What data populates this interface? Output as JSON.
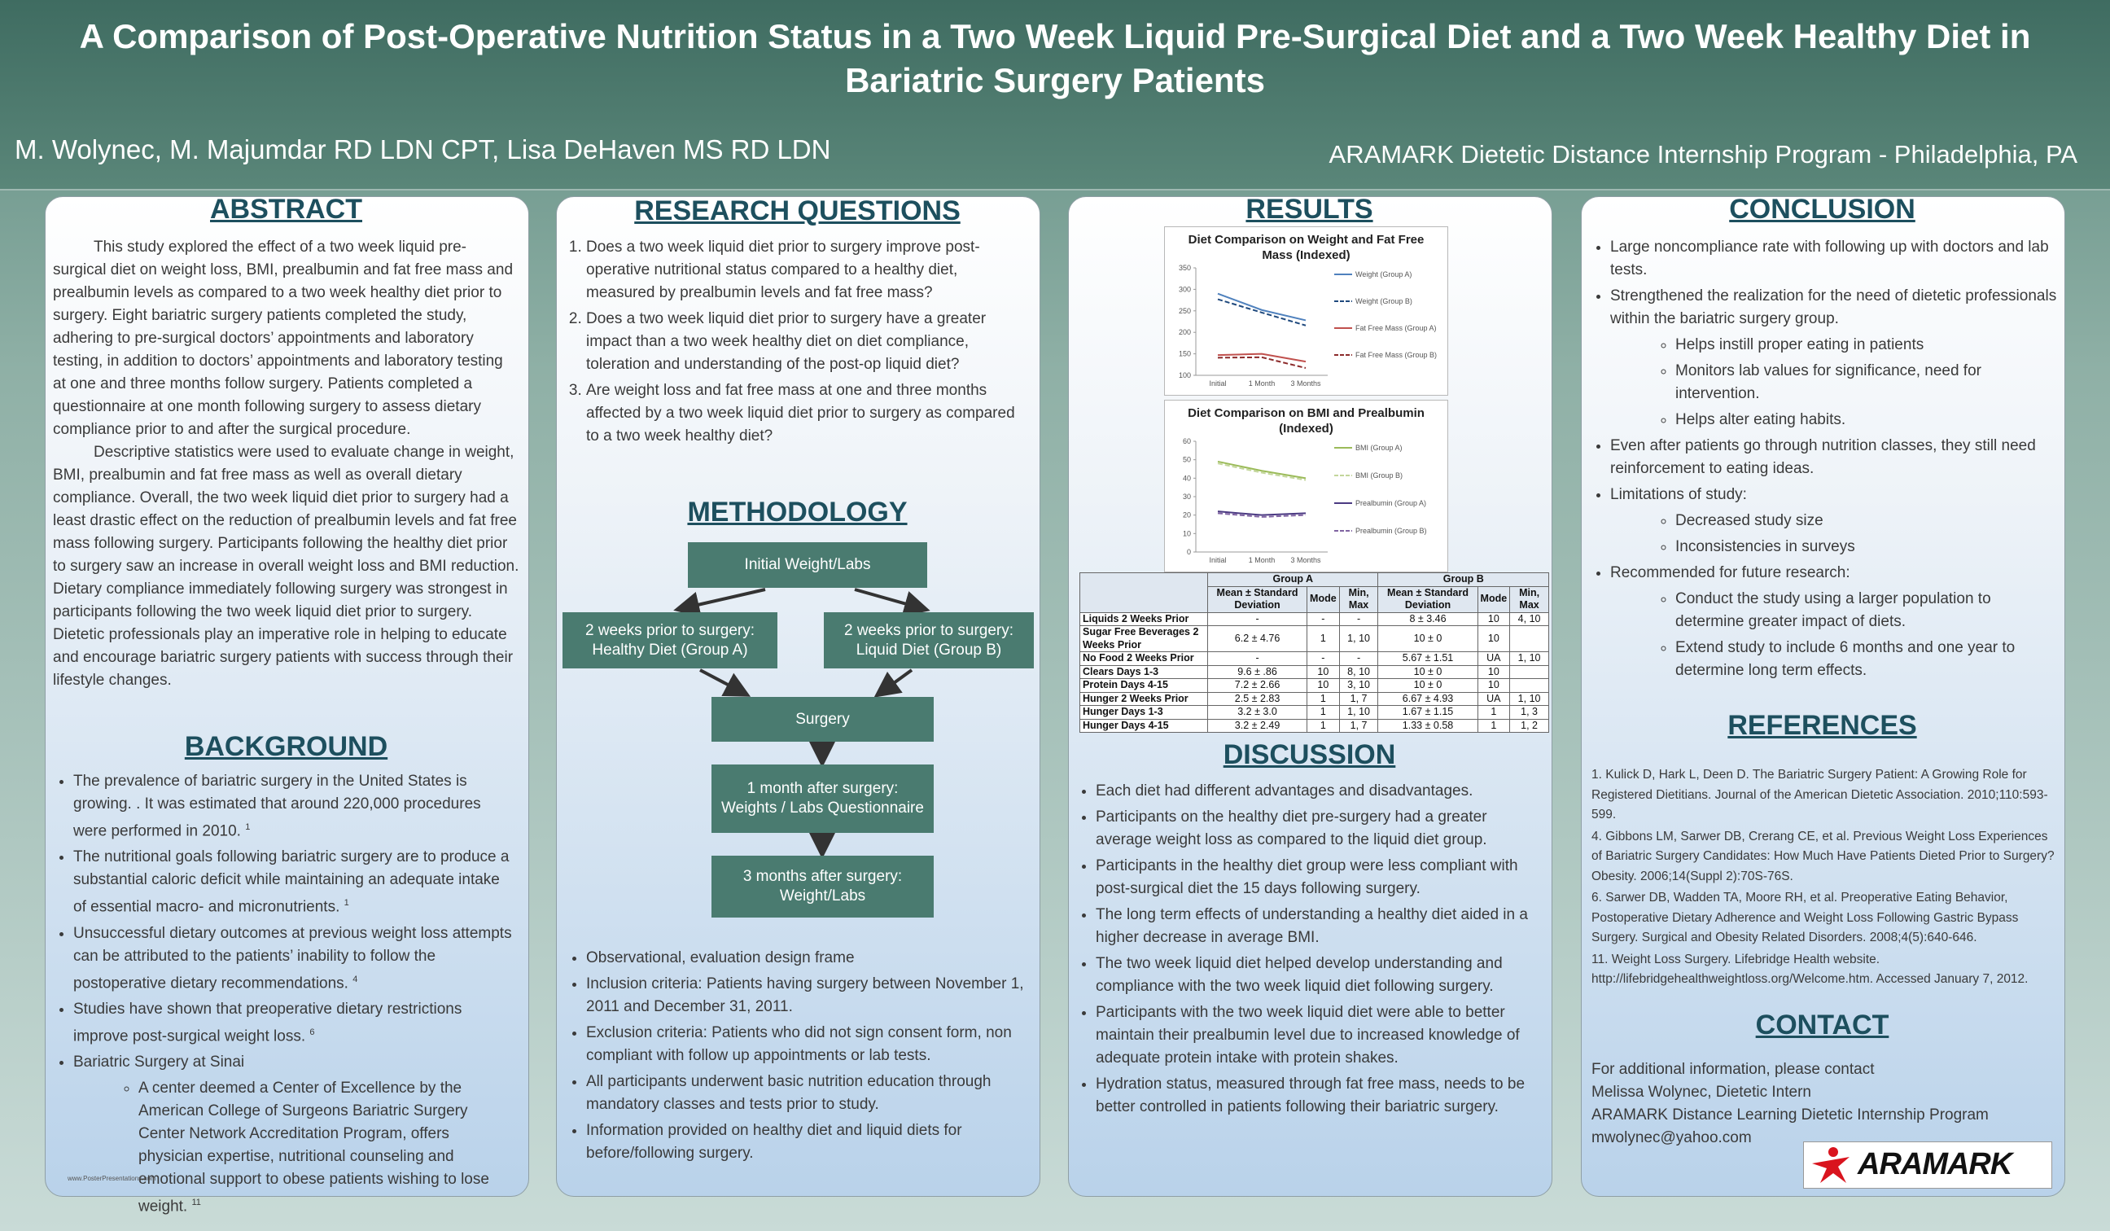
{
  "header": {
    "title": "A Comparison of Post-Operative Nutrition Status in a Two Week Liquid Pre-Surgical Diet and a Two Week Healthy Diet in Bariatric Surgery Patients",
    "authors": "M. Wolynec, M. Majumdar RD LDN CPT, Lisa DeHaven MS RD LDN",
    "program": "ARAMARK Dietetic Distance Internship Program  - Philadelphia, PA"
  },
  "abstract": {
    "heading": "ABSTRACT",
    "paragraphs": [
      "This study explored the effect of a two week liquid pre-surgical diet on weight loss, BMI, prealbumin and fat free mass and prealbumin levels as compared to a two week healthy diet prior to surgery. Eight bariatric surgery patients completed the study, adhering to pre-surgical doctors’ appointments and laboratory testing, in addition to doctors’ appointments and laboratory testing at one and three months follow surgery. Patients completed a questionnaire at one month following surgery to assess dietary compliance prior to and after the surgical procedure.",
      "Descriptive statistics were used to evaluate change in weight, BMI, prealbumin and fat free mass as well as overall dietary compliance. Overall, the two week liquid diet prior to surgery had a least drastic effect on the reduction of prealbumin levels and fat free mass following surgery. Participants following the healthy diet prior to surgery saw an increase in overall weight loss and BMI reduction. Dietary compliance immediately following surgery was strongest in participants following the two week liquid diet prior to surgery.  Dietetic professionals play an imperative role in helping to educate and encourage bariatric surgery patients with success through their lifestyle changes."
    ]
  },
  "background": {
    "heading": "BACKGROUND",
    "items": [
      {
        "text": "The prevalence of bariatric surgery in the United States is growing. . It was estimated that around 220,000 procedures were performed in 2010.",
        "ref": "1"
      },
      {
        "text": "The nutritional goals following bariatric surgery are to produce a substantial caloric deficit while maintaining an adequate intake of essential macro- and micronutrients.",
        "ref": "1"
      },
      {
        "text": "Unsuccessful dietary outcomes at previous weight loss attempts can be attributed to the patients’ inability to follow the postoperative dietary recommendations.",
        "ref": "4"
      },
      {
        "text": "Studies have shown that preoperative dietary restrictions improve post-surgical weight loss.",
        "ref": "6"
      },
      {
        "text": "Bariatric Surgery at Sinai",
        "sub": [
          {
            "text": "A center deemed a Center of Excellence by the American College of Surgeons Bariatric Surgery Center Network Accreditation Program, offers physician expertise, nutritional counseling and emotional support to obese patients wishing to lose weight.",
            "ref": "11"
          }
        ]
      }
    ]
  },
  "research_questions": {
    "heading": "RESEARCH QUESTIONS",
    "items": [
      "Does a two week liquid diet prior to surgery improve post-operative nutritional status compared to a healthy diet, measured by prealbumin levels and fat free mass?",
      "Does a two week liquid diet prior to surgery have a greater impact than a two week healthy diet on diet compliance, toleration and understanding of the post-op liquid diet?",
      "Are weight loss and fat free mass at one and three months affected by a two week liquid diet prior to surgery as compared to a two week healthy diet?"
    ]
  },
  "methodology": {
    "heading": "METHODOLOGY",
    "flow": [
      "Initial Weight/Labs",
      "2 weeks prior to surgery: Healthy Diet (Group A)",
      "2 weeks prior to surgery: Liquid Diet (Group B)",
      "Surgery",
      "1 month after surgery: Weights / Labs Questionnaire",
      "3 months after surgery: Weight/Labs"
    ],
    "items": [
      "Observational, evaluation design frame",
      "Inclusion criteria: Patients having surgery between November 1, 2011 and December 31, 2011.",
      "Exclusion criteria: Patients who did not sign consent form, non compliant with follow up appointments or lab tests.",
      "All participants underwent basic nutrition education through mandatory classes and tests prior to study.",
      "Information provided on healthy diet and liquid diets for before/following surgery."
    ]
  },
  "results": {
    "heading": "RESULTS",
    "table": {
      "groups": [
        "Group A",
        "Group B"
      ],
      "columns": [
        "Mean ± Standard Deviation",
        "Mode",
        "Min, Max",
        "Mean ± Standard Deviation",
        "Mode",
        "Min, Max"
      ],
      "rows": [
        {
          "label": "Liquids 2 Weeks Prior",
          "cells": [
            "-",
            "-",
            "-",
            "8 ± 3.46",
            "10",
            "4, 10"
          ]
        },
        {
          "label": "Sugar Free Beverages 2 Weeks Prior",
          "cells": [
            "6.2 ± 4.76",
            "1",
            "1, 10",
            "10 ± 0",
            "10",
            null
          ]
        },
        {
          "label": "No Food 2 Weeks Prior",
          "cells": [
            "-",
            "-",
            "-",
            "5.67 ± 1.51",
            "UA",
            "1, 10"
          ]
        },
        {
          "label": "Clears Days 1-3",
          "cells": [
            "9.6 ± .86",
            "10",
            "8, 10",
            "10 ± 0",
            "10",
            null
          ]
        },
        {
          "label": "Protein Days 4-15",
          "cells": [
            "7.2 ± 2.66",
            "10",
            "3, 10",
            "10 ± 0",
            "10",
            null
          ]
        },
        {
          "label": "Hunger 2 Weeks Prior",
          "cells": [
            "2.5 ± 2.83",
            "1",
            "1, 7",
            "6.67 ± 4.93",
            "UA",
            "1, 10"
          ]
        },
        {
          "label": "Hunger Days 1-3",
          "cells": [
            "3.2 ± 3.0",
            "1",
            "1, 10",
            "1.67 ± 1.15",
            "1",
            "1, 3"
          ]
        },
        {
          "label": "Hunger Days 4-15",
          "cells": [
            "3.2 ± 2.49",
            "1",
            "1, 7",
            "1.33 ± 0.58",
            "1",
            "1, 2"
          ]
        }
      ]
    }
  },
  "chart_data": [
    {
      "type": "line",
      "title": "Diet Comparison on Weight and Fat Free Mass (Indexed)",
      "categories": [
        "Initial",
        "1 Month",
        "3 Months"
      ],
      "ylim": [
        100,
        350
      ],
      "yticks": [
        100,
        150,
        200,
        250,
        300,
        350
      ],
      "series": [
        {
          "name": "Weight (Group A)",
          "color": "#4f81bd",
          "dash": false,
          "values": [
            290,
            252,
            228
          ]
        },
        {
          "name": "Weight (Group B)",
          "color": "#1f497d",
          "dash": true,
          "values": [
            277,
            246,
            216
          ]
        },
        {
          "name": "Fat Free Mass (Group A)",
          "color": "#c0504d",
          "dash": false,
          "values": [
            147,
            150,
            132
          ]
        },
        {
          "name": "Fat Free Mass (Group B)",
          "color": "#8c2b2b",
          "dash": true,
          "values": [
            141,
            142,
            117
          ]
        }
      ]
    },
    {
      "type": "line",
      "title": "Diet Comparison on BMI and Prealbumin (Indexed)",
      "categories": [
        "Initial",
        "1 Month",
        "3 Months"
      ],
      "ylim": [
        0,
        60
      ],
      "yticks": [
        0,
        10,
        20,
        30,
        40,
        50,
        60
      ],
      "series": [
        {
          "name": "BMI (Group A)",
          "color": "#9bbb59",
          "dash": false,
          "values": [
            49,
            44,
            40
          ]
        },
        {
          "name": "BMI (Group B)",
          "color": "#c3d69b",
          "dash": true,
          "values": [
            48,
            43,
            39
          ]
        },
        {
          "name": "Prealbumin (Group A)",
          "color": "#4b3a82",
          "dash": false,
          "values": [
            22,
            20,
            21
          ]
        },
        {
          "name": "Prealbumin (Group B)",
          "color": "#8064a2",
          "dash": true,
          "values": [
            21,
            19,
            20
          ]
        }
      ]
    }
  ],
  "discussion": {
    "heading": "DISCUSSION",
    "items": [
      "Each diet had different advantages and disadvantages.",
      "Participants on the healthy diet pre-surgery had a greater average weight loss as compared to the liquid diet group.",
      "Participants in the healthy diet group were less compliant with post-surgical diet the 15 days following surgery.",
      "The long term effects of understanding a healthy diet aided in a higher decrease in average BMI.",
      "The two week liquid diet helped develop understanding and compliance with the two week liquid diet following surgery.",
      "Participants with the two week liquid diet were able to better maintain their prealbumin level due to increased knowledge of adequate protein intake with protein shakes.",
      "Hydration status, measured through fat free mass, needs to be better controlled in patients following their bariatric surgery."
    ]
  },
  "conclusion": {
    "heading": "CONCLUSION",
    "items": [
      {
        "text": "Large noncompliance rate with following up with doctors and lab tests."
      },
      {
        "text": "Strengthened the realization for the need of dietetic professionals within the bariatric surgery group.",
        "sub": [
          {
            "text": "Helps instill proper eating in patients"
          },
          {
            "text": "Monitors lab values for significance, need for intervention."
          },
          {
            "text": "Helps alter eating habits."
          }
        ]
      },
      {
        "text": "Even after patients go through nutrition classes, they still need reinforcement to eating ideas."
      },
      {
        "text": "Limitations of study:",
        "sub": [
          {
            "text": "Decreased study size"
          },
          {
            "text": "Inconsistencies in surveys"
          }
        ]
      },
      {
        "text": "Recommended for future research:",
        "sub": [
          {
            "text": "Conduct the study using a larger population to determine greater impact of diets."
          },
          {
            "text": "Extend study to include 6 months and one year to determine long term effects."
          }
        ]
      }
    ]
  },
  "references": {
    "heading": "REFERENCES",
    "items": [
      "1.   Kulick D, Hark L, Deen D. The Bariatric Surgery Patient: A Growing Role for Registered Dietitians. Journal of the American Dietetic Association. 2010;110:593-599.",
      "4. Gibbons LM, Sarwer DB, Crerang CE, et al. Previous Weight Loss Experiences of   Bariatric Surgery Candidates: How Much Have Patients Dieted Prior to Surgery? Obesity. 2006;14(Suppl 2):70S-76S.",
      "6. Sarwer DB, Wadden TA, Moore RH, et al. Preoperative Eating Behavior, Postoperative Dietary Adherence and Weight Loss Following Gastric Bypass Surgery. Surgical and Obesity Related Disorders. 2008;4(5):640-646.",
      "11. Weight Loss Surgery. Lifebridge Health website. http://lifebridgehealthweightloss.org/Welcome.htm. Accessed January 7, 2012."
    ]
  },
  "contact": {
    "heading": "CONTACT",
    "lines": [
      "For additional information, please contact",
      "Melissa Wolynec, Dietetic Intern",
      "ARAMARK Distance Learning Dietetic Internship Program",
      "mwolynec@yahoo.com"
    ]
  },
  "logo": "ARAMARK",
  "footer": "www.PosterPresentations.com"
}
